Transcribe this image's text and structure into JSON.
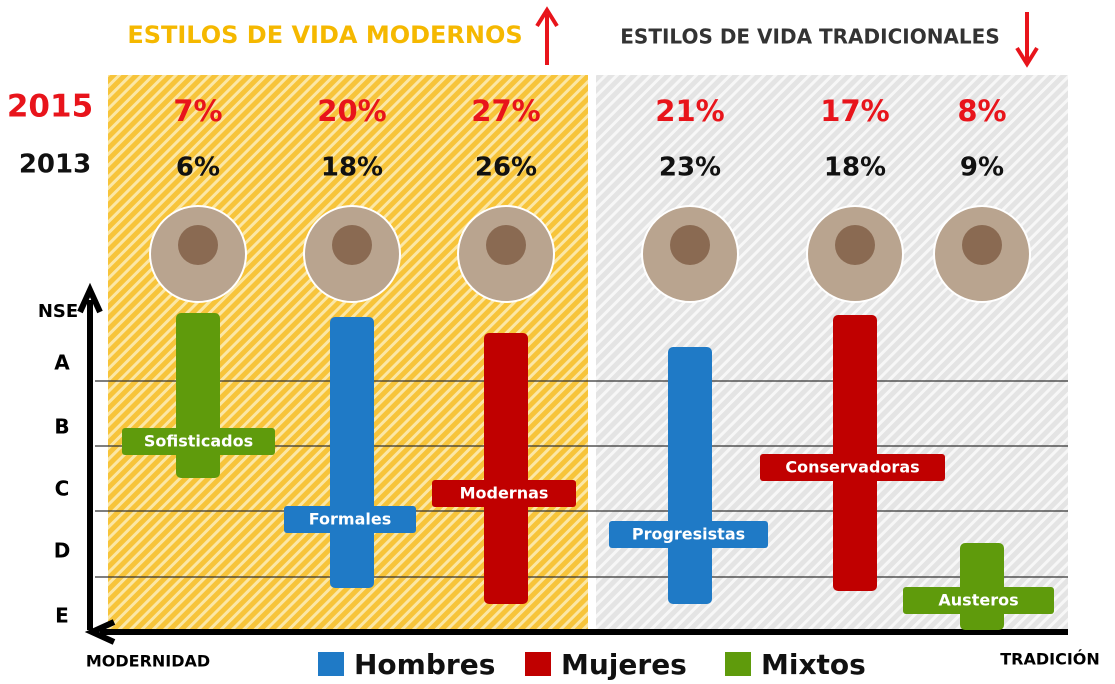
{
  "header": {
    "modern": "ESTILOS DE VIDA MODERNOS",
    "traditional": "ESTILOS DE VIDA TRADICIONALES"
  },
  "years": [
    "2015",
    "2013"
  ],
  "styles": [
    {
      "name": "Sofisticados",
      "p2015": "7%",
      "p2013": "6%"
    },
    {
      "name": "Formales",
      "p2015": "20%",
      "p2013": "18%"
    },
    {
      "name": "Modernas",
      "p2015": "27%",
      "p2013": "26%"
    },
    {
      "name": "Progresistas",
      "p2015": "21%",
      "p2013": "23%"
    },
    {
      "name": "Conservadoras",
      "p2015": "17%",
      "p2013": "18%"
    },
    {
      "name": "Austeros",
      "p2015": "8%",
      "p2013": "9%"
    }
  ],
  "axis": {
    "title": "NSE",
    "levels": [
      "A",
      "B",
      "C",
      "D",
      "E"
    ],
    "left": "MODERNIDAD",
    "right": "TRADICIÓN"
  },
  "legend": [
    "Hombres",
    "Mujeres",
    "Mixtos"
  ]
}
